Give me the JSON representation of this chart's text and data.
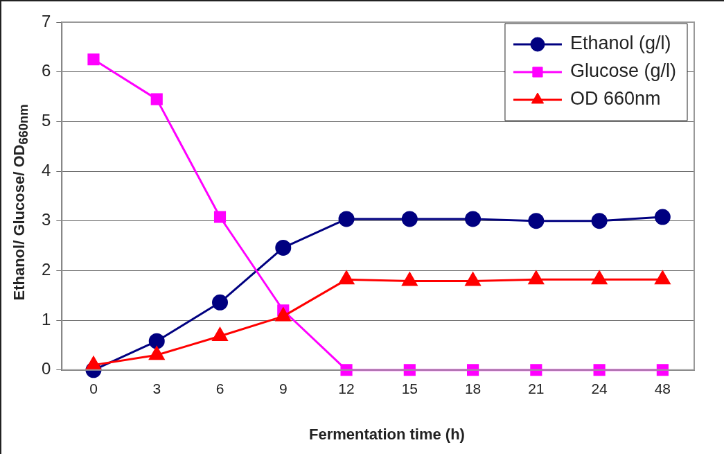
{
  "chart_data": {
    "type": "line",
    "xlabel": "Fermentation time (h)",
    "ylabel": "Ethanol/ Glucose/ OD$_{660nm}$",
    "categories": [
      "0",
      "3",
      "6",
      "9",
      "12",
      "15",
      "18",
      "21",
      "24",
      "48"
    ],
    "series": [
      {
        "name": "Ethanol (g/l)",
        "color": "#000080",
        "marker": "circle",
        "values": [
          0,
          0.58,
          1.36,
          2.46,
          3.04,
          3.04,
          3.04,
          3.0,
          3.0,
          3.08
        ]
      },
      {
        "name": "Glucose (g/l)",
        "color": "#ff00ff",
        "marker": "square",
        "values": [
          6.25,
          5.45,
          3.08,
          1.2,
          0,
          0,
          0,
          0,
          0,
          0
        ]
      },
      {
        "name": "OD 660nm",
        "color": "#ff0000",
        "marker": "triangle",
        "values": [
          0.1,
          0.3,
          0.68,
          1.08,
          1.82,
          1.79,
          1.79,
          1.82,
          1.82,
          1.82
        ]
      }
    ],
    "ylim": [
      0,
      7
    ],
    "yticks": [
      0,
      1,
      2,
      3,
      4,
      5,
      6,
      7
    ],
    "grid": "y",
    "legend": "top right",
    "line_style": "solid"
  }
}
